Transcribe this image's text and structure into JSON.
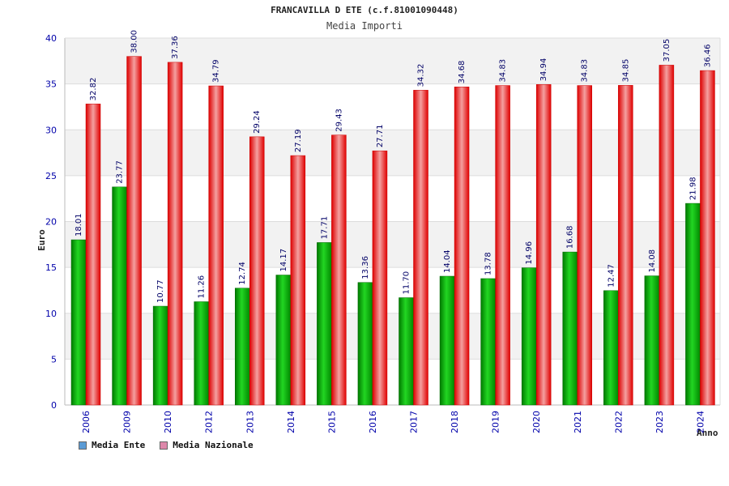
{
  "chart_data": {
    "type": "bar",
    "title": "FRANCAVILLA D ETE (c.f.81001090448)",
    "subtitle": "Media Importi",
    "xlabel": "Anno",
    "ylabel": "Euro",
    "ylim": [
      0,
      40
    ],
    "yticks": [
      0,
      5,
      10,
      15,
      20,
      25,
      30,
      35,
      40
    ],
    "grid": true,
    "legend_position": "bottom-left",
    "categories": [
      "2006",
      "2009",
      "2010",
      "2012",
      "2013",
      "2014",
      "2015",
      "2016",
      "2017",
      "2018",
      "2019",
      "2020",
      "2021",
      "2022",
      "2023",
      "2024"
    ],
    "series": [
      {
        "name": "Media Ente",
        "color": "#00aa00",
        "legend_color": "#5b9bd5",
        "values": [
          18.01,
          23.77,
          10.77,
          11.26,
          12.74,
          14.17,
          17.71,
          13.36,
          11.7,
          14.04,
          13.78,
          14.96,
          16.68,
          12.47,
          14.08,
          21.98
        ],
        "labels": [
          "18.01",
          "23.77",
          "10.77",
          "11.26",
          "12.74",
          "14.17",
          "17.71",
          "13.36",
          "11.70",
          "14.04",
          "13.78",
          "14.96",
          "16.68",
          "12.47",
          "14.08",
          "21.98"
        ]
      },
      {
        "name": "Media Nazionale",
        "color": "#ee1111",
        "legend_color": "#dd88aa",
        "values": [
          32.82,
          38.0,
          37.36,
          34.79,
          29.24,
          27.19,
          29.43,
          27.71,
          34.32,
          34.68,
          34.83,
          34.94,
          34.83,
          34.85,
          37.05,
          36.46
        ],
        "labels": [
          "32.82",
          "38.00",
          "37.36",
          "34.79",
          "29.24",
          "27.19",
          "29.43",
          "27.71",
          "34.32",
          "34.68",
          "34.83",
          "34.94",
          "34.83",
          "34.85",
          "37.05",
          "36.46"
        ]
      }
    ]
  }
}
